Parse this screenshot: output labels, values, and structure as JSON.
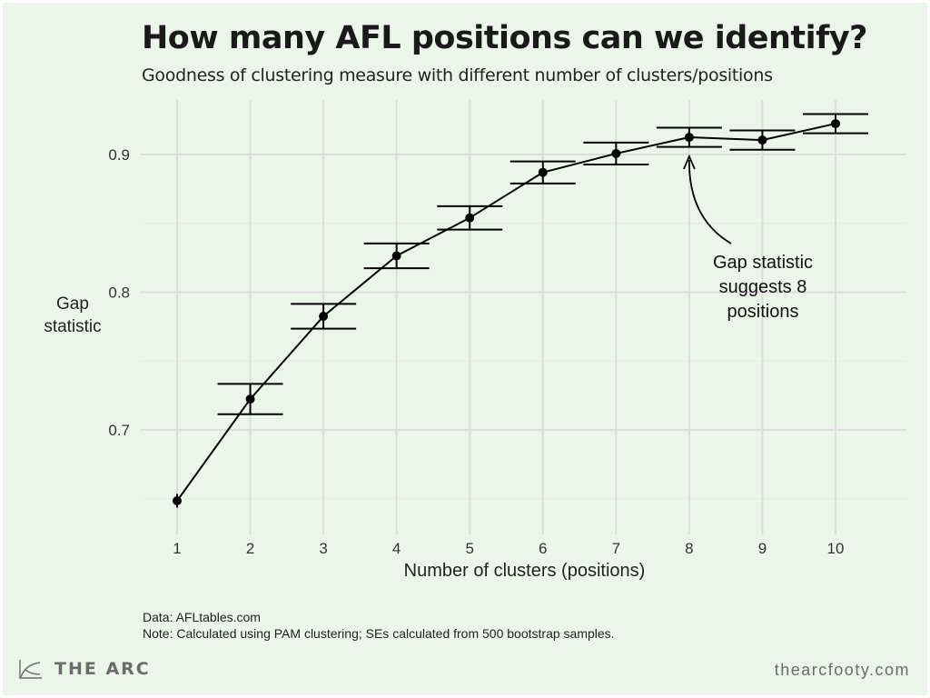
{
  "chart_data": {
    "type": "line",
    "title": "How many AFL positions can we identify?",
    "subtitle": "Goodness of clustering measure with different number of clusters/positions",
    "xlabel": "Number of clusters (positions)",
    "ylabel": "Gap statistic",
    "x": [
      1,
      2,
      3,
      4,
      5,
      6,
      7,
      8,
      9,
      10
    ],
    "y": [
      0.6485,
      0.7224,
      0.7825,
      0.8264,
      0.854,
      0.887,
      0.9007,
      0.9125,
      0.9105,
      0.9224
    ],
    "se": [
      0.005,
      0.011,
      0.009,
      0.009,
      0.0085,
      0.008,
      0.008,
      0.007,
      0.007,
      0.007
    ],
    "xticks": [
      "1",
      "2",
      "3",
      "4",
      "5",
      "6",
      "7",
      "8",
      "9",
      "10"
    ],
    "yticks": [
      0.7,
      0.8,
      0.9
    ],
    "ytick_labels": [
      "0.7",
      "0.8",
      "0.9"
    ],
    "xlim": [
      0.7,
      11
    ],
    "ylim": [
      0.64,
      0.936
    ],
    "grid": true,
    "legend": "none",
    "annotation": {
      "text_lines": [
        "Gap statistic",
        "suggests 8",
        "positions"
      ],
      "points_to_x": 8
    },
    "colors": {
      "line": "#000000",
      "grid": "#dcdcdc",
      "background": "#ecf5ea"
    }
  },
  "notes": {
    "source": "Data: AFLtables.com",
    "note": "Note: Calculated using PAM clustering; SEs calculated from 500 bootstrap samples."
  },
  "footer": {
    "brand": "THE ARC",
    "site": "thearcfooty.com",
    "logo_icon": "arc-curve-icon"
  }
}
